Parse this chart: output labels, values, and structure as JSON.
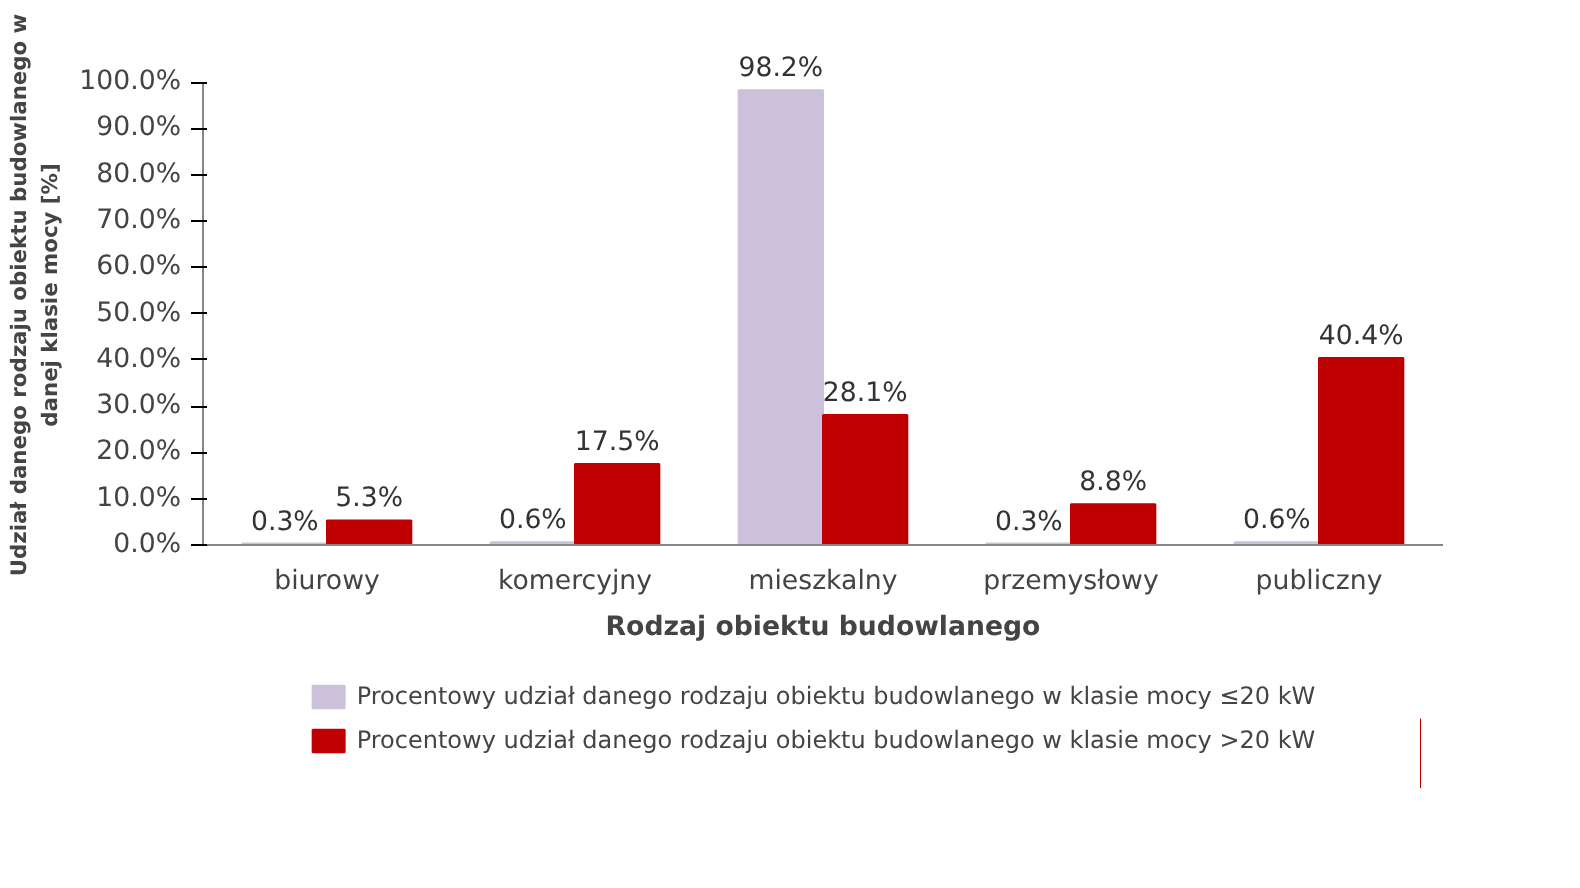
{
  "chart_data": {
    "type": "bar",
    "categories": [
      "biurowy",
      "komercyjny",
      "mieszkalny",
      "przemysłowy",
      "publiczny"
    ],
    "xlabel": "Rodzaj obiektu budowlanego",
    "ylabel": "Udział danego rodzaju obiektu budowlanego w danej klasie mocy [%]",
    "series": [
      {
        "name": "Procentowy udział danego rodzaju obiektu budowlanego w klasie mocy ≤20 kW",
        "color": "#ccc0da",
        "values": [
          0.3,
          0.6,
          98.2,
          0.3,
          0.6
        ],
        "value_labels": [
          "0.3%",
          "0.6%",
          "98.2%",
          "0.3%",
          "0.6%"
        ]
      },
      {
        "name": "Procentowy udział danego rodzaju obiektu budowlanego w klasie mocy >20 kW",
        "color": "#c00000",
        "values": [
          5.3,
          17.5,
          28.1,
          8.8,
          40.4
        ],
        "value_labels": [
          "5.3%",
          "17.5%",
          "28.1%",
          "8.8%",
          "40.4%"
        ]
      }
    ],
    "ylim": [
      0,
      100
    ],
    "yticks": [
      {
        "value": 0,
        "label": "0.0%"
      },
      {
        "value": 10,
        "label": "10.0%"
      },
      {
        "value": 20,
        "label": "20.0%"
      },
      {
        "value": 30,
        "label": "30.0%"
      },
      {
        "value": 40,
        "label": "40.0%"
      },
      {
        "value": 50,
        "label": "50.0%"
      },
      {
        "value": 60,
        "label": "60.0%"
      },
      {
        "value": 70,
        "label": "70.0%"
      },
      {
        "value": 80,
        "label": "80.0%"
      },
      {
        "value": 90,
        "label": "90.0%"
      },
      {
        "value": 100,
        "label": "100.0%"
      }
    ],
    "legend": "bottom",
    "grid": false
  }
}
